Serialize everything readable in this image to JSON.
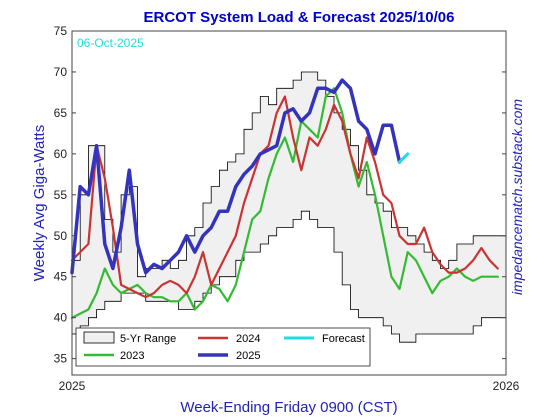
{
  "chart_data": {
    "type": "line",
    "title": "ERCOT System Load & Forecast 2025/10/06",
    "date_label": "06-Oct-2025",
    "xlabel": "Week-Ending Friday 0900 (CST)",
    "ylabel": "Weekly Avg Giga-Watts",
    "watermark": "impedancematch.substack.com",
    "x_tick_labels": [
      "2025",
      "2026"
    ],
    "y_ticks": [
      35,
      40,
      45,
      50,
      55,
      60,
      65,
      70,
      75
    ],
    "ylim": [
      33,
      75
    ],
    "x_range_weeks": [
      0,
      53
    ],
    "grid": false,
    "legend_position": "bottom-left",
    "legend": [
      {
        "key": "range",
        "label": "5-Yr Range"
      },
      {
        "key": "y2024",
        "label": "2024"
      },
      {
        "key": "forecast",
        "label": "Forecast"
      },
      {
        "key": "y2023",
        "label": "2023"
      },
      {
        "key": "y2025",
        "label": "2025"
      }
    ],
    "colors": {
      "range_fill": "#f0f0f0",
      "range_line": "#000000",
      "y2023": "#33bb33",
      "y2024": "#cc3333",
      "y2025": "#3333bb",
      "forecast": "#22dddd",
      "title": "#0000cc",
      "date": "#22dddd",
      "ylabel": "#2222bb",
      "watermark": "#2222bb"
    },
    "range_upper": [
      [
        0,
        47
      ],
      [
        1,
        55
      ],
      [
        2,
        61
      ],
      [
        3,
        61
      ],
      [
        4,
        52
      ],
      [
        5,
        48
      ],
      [
        6,
        55
      ],
      [
        7,
        56
      ],
      [
        8,
        45
      ],
      [
        9,
        46
      ],
      [
        10,
        46
      ],
      [
        11,
        47
      ],
      [
        12,
        46
      ],
      [
        13,
        47
      ],
      [
        14,
        50
      ],
      [
        15,
        51
      ],
      [
        16,
        54
      ],
      [
        17,
        56
      ],
      [
        18,
        58
      ],
      [
        19,
        59
      ],
      [
        20,
        60
      ],
      [
        21,
        63
      ],
      [
        22,
        65
      ],
      [
        23,
        67
      ],
      [
        24,
        66
      ],
      [
        25,
        68
      ],
      [
        26,
        68
      ],
      [
        27,
        69
      ],
      [
        28,
        70
      ],
      [
        29,
        70
      ],
      [
        30,
        69
      ],
      [
        31,
        67
      ],
      [
        32,
        65
      ],
      [
        33,
        63
      ],
      [
        34,
        61
      ],
      [
        35,
        58
      ],
      [
        36,
        55
      ],
      [
        37,
        54
      ],
      [
        38,
        53
      ],
      [
        39,
        51
      ],
      [
        40,
        51
      ],
      [
        41,
        50
      ],
      [
        42,
        49
      ],
      [
        43,
        48
      ],
      [
        44,
        47
      ],
      [
        45,
        46
      ],
      [
        46,
        47
      ],
      [
        47,
        49
      ],
      [
        48,
        49
      ],
      [
        49,
        50
      ],
      [
        50,
        50
      ],
      [
        51,
        50
      ],
      [
        52,
        50
      ],
      [
        53,
        50
      ]
    ],
    "range_lower": [
      [
        0,
        38
      ],
      [
        1,
        39
      ],
      [
        2,
        40
      ],
      [
        3,
        41
      ],
      [
        4,
        42
      ],
      [
        5,
        42
      ],
      [
        6,
        43
      ],
      [
        7,
        43
      ],
      [
        8,
        43
      ],
      [
        9,
        42
      ],
      [
        10,
        42
      ],
      [
        11,
        42
      ],
      [
        12,
        42
      ],
      [
        13,
        41
      ],
      [
        14,
        41
      ],
      [
        15,
        42
      ],
      [
        16,
        43
      ],
      [
        17,
        44
      ],
      [
        18,
        45
      ],
      [
        19,
        45
      ],
      [
        20,
        47
      ],
      [
        21,
        48
      ],
      [
        22,
        48
      ],
      [
        23,
        49
      ],
      [
        24,
        50
      ],
      [
        25,
        51
      ],
      [
        26,
        51
      ],
      [
        27,
        52
      ],
      [
        28,
        53
      ],
      [
        29,
        52
      ],
      [
        30,
        51
      ],
      [
        31,
        51
      ],
      [
        32,
        48
      ],
      [
        33,
        44
      ],
      [
        34,
        41
      ],
      [
        35,
        40
      ],
      [
        36,
        40
      ],
      [
        37,
        40
      ],
      [
        38,
        39
      ],
      [
        39,
        38
      ],
      [
        40,
        37
      ],
      [
        41,
        37
      ],
      [
        42,
        38
      ],
      [
        43,
        38
      ],
      [
        44,
        38
      ],
      [
        45,
        38
      ],
      [
        46,
        38
      ],
      [
        47,
        38
      ],
      [
        48,
        38
      ],
      [
        49,
        39
      ],
      [
        50,
        40
      ],
      [
        51,
        40
      ],
      [
        52,
        40
      ],
      [
        53,
        40
      ]
    ],
    "series": [
      {
        "key": "y2023",
        "name": "2023",
        "width": 2.2,
        "points": [
          [
            0,
            40
          ],
          [
            1,
            40.5
          ],
          [
            2,
            41
          ],
          [
            3,
            43
          ],
          [
            4,
            46
          ],
          [
            5,
            44
          ],
          [
            6,
            43
          ],
          [
            7,
            43.5
          ],
          [
            8,
            44
          ],
          [
            9,
            43
          ],
          [
            10,
            42.5
          ],
          [
            11,
            42.5
          ],
          [
            12,
            42
          ],
          [
            13,
            42
          ],
          [
            14,
            43
          ],
          [
            15,
            41
          ],
          [
            16,
            42
          ],
          [
            17,
            44
          ],
          [
            18,
            43.5
          ],
          [
            19,
            42
          ],
          [
            20,
            44
          ],
          [
            21,
            48
          ],
          [
            22,
            52
          ],
          [
            23,
            53
          ],
          [
            24,
            57
          ],
          [
            25,
            60
          ],
          [
            26,
            62
          ],
          [
            27,
            59
          ],
          [
            28,
            64
          ],
          [
            29,
            63
          ],
          [
            30,
            62
          ],
          [
            31,
            67
          ],
          [
            32,
            68
          ],
          [
            33,
            65
          ],
          [
            34,
            60
          ],
          [
            35,
            56
          ],
          [
            36,
            59
          ],
          [
            37,
            55
          ],
          [
            38,
            50
          ],
          [
            39,
            45
          ],
          [
            40,
            43.5
          ],
          [
            41,
            48
          ],
          [
            42,
            47
          ],
          [
            43,
            45
          ],
          [
            44,
            43
          ],
          [
            45,
            44.5
          ],
          [
            46,
            45
          ],
          [
            47,
            46
          ],
          [
            48,
            45
          ],
          [
            49,
            44.5
          ],
          [
            50,
            45
          ],
          [
            51,
            45
          ],
          [
            52,
            45
          ]
        ]
      },
      {
        "key": "y2024",
        "name": "2024",
        "width": 2.2,
        "points": [
          [
            0,
            47
          ],
          [
            1,
            48
          ],
          [
            2,
            49
          ],
          [
            3,
            61
          ],
          [
            4,
            57
          ],
          [
            5,
            51
          ],
          [
            6,
            44
          ],
          [
            7,
            43.5
          ],
          [
            8,
            43
          ],
          [
            9,
            42.5
          ],
          [
            10,
            43
          ],
          [
            11,
            44
          ],
          [
            12,
            44.5
          ],
          [
            13,
            44
          ],
          [
            14,
            43
          ],
          [
            15,
            45
          ],
          [
            16,
            48
          ],
          [
            17,
            44
          ],
          [
            18,
            46
          ],
          [
            19,
            48
          ],
          [
            20,
            50
          ],
          [
            21,
            54
          ],
          [
            22,
            57
          ],
          [
            23,
            60
          ],
          [
            24,
            61
          ],
          [
            25,
            65
          ],
          [
            26,
            67
          ],
          [
            27,
            62
          ],
          [
            28,
            58
          ],
          [
            29,
            62
          ],
          [
            30,
            61
          ],
          [
            31,
            63
          ],
          [
            32,
            66
          ],
          [
            33,
            64
          ],
          [
            34,
            60
          ],
          [
            35,
            57
          ],
          [
            36,
            62
          ],
          [
            37,
            59
          ],
          [
            38,
            55
          ],
          [
            39,
            54
          ],
          [
            40,
            50
          ],
          [
            41,
            49
          ],
          [
            42,
            49
          ],
          [
            43,
            51
          ],
          [
            44,
            48
          ],
          [
            45,
            46.5
          ],
          [
            46,
            45.5
          ],
          [
            47,
            45.5
          ],
          [
            48,
            46
          ],
          [
            49,
            47
          ],
          [
            50,
            48.5
          ],
          [
            51,
            47
          ],
          [
            52,
            46
          ]
        ]
      },
      {
        "key": "y2025",
        "name": "2025",
        "width": 3.5,
        "points": [
          [
            0,
            45.5
          ],
          [
            1,
            56
          ],
          [
            2,
            55
          ],
          [
            3,
            61
          ],
          [
            4,
            49
          ],
          [
            5,
            46
          ],
          [
            6,
            51
          ],
          [
            7,
            58
          ],
          [
            8,
            49
          ],
          [
            9,
            45.5
          ],
          [
            10,
            46.5
          ],
          [
            11,
            46
          ],
          [
            12,
            47
          ],
          [
            13,
            48
          ],
          [
            14,
            50
          ],
          [
            15,
            48
          ],
          [
            16,
            50
          ],
          [
            17,
            51
          ],
          [
            18,
            53
          ],
          [
            19,
            53
          ],
          [
            20,
            56
          ],
          [
            21,
            57.5
          ],
          [
            22,
            58.5
          ],
          [
            23,
            60
          ],
          [
            24,
            60.5
          ],
          [
            25,
            61
          ],
          [
            26,
            65
          ],
          [
            27,
            65.5
          ],
          [
            28,
            64
          ],
          [
            29,
            65
          ],
          [
            30,
            68
          ],
          [
            31,
            68
          ],
          [
            32,
            67.5
          ],
          [
            33,
            69
          ],
          [
            34,
            68
          ],
          [
            35,
            64
          ],
          [
            36,
            63
          ],
          [
            37,
            60
          ],
          [
            38,
            63.5
          ],
          [
            39,
            63.5
          ],
          [
            40,
            59
          ]
        ]
      },
      {
        "key": "forecast",
        "name": "Forecast",
        "width": 3,
        "points": [
          [
            40,
            59
          ],
          [
            41,
            60
          ]
        ]
      }
    ]
  }
}
